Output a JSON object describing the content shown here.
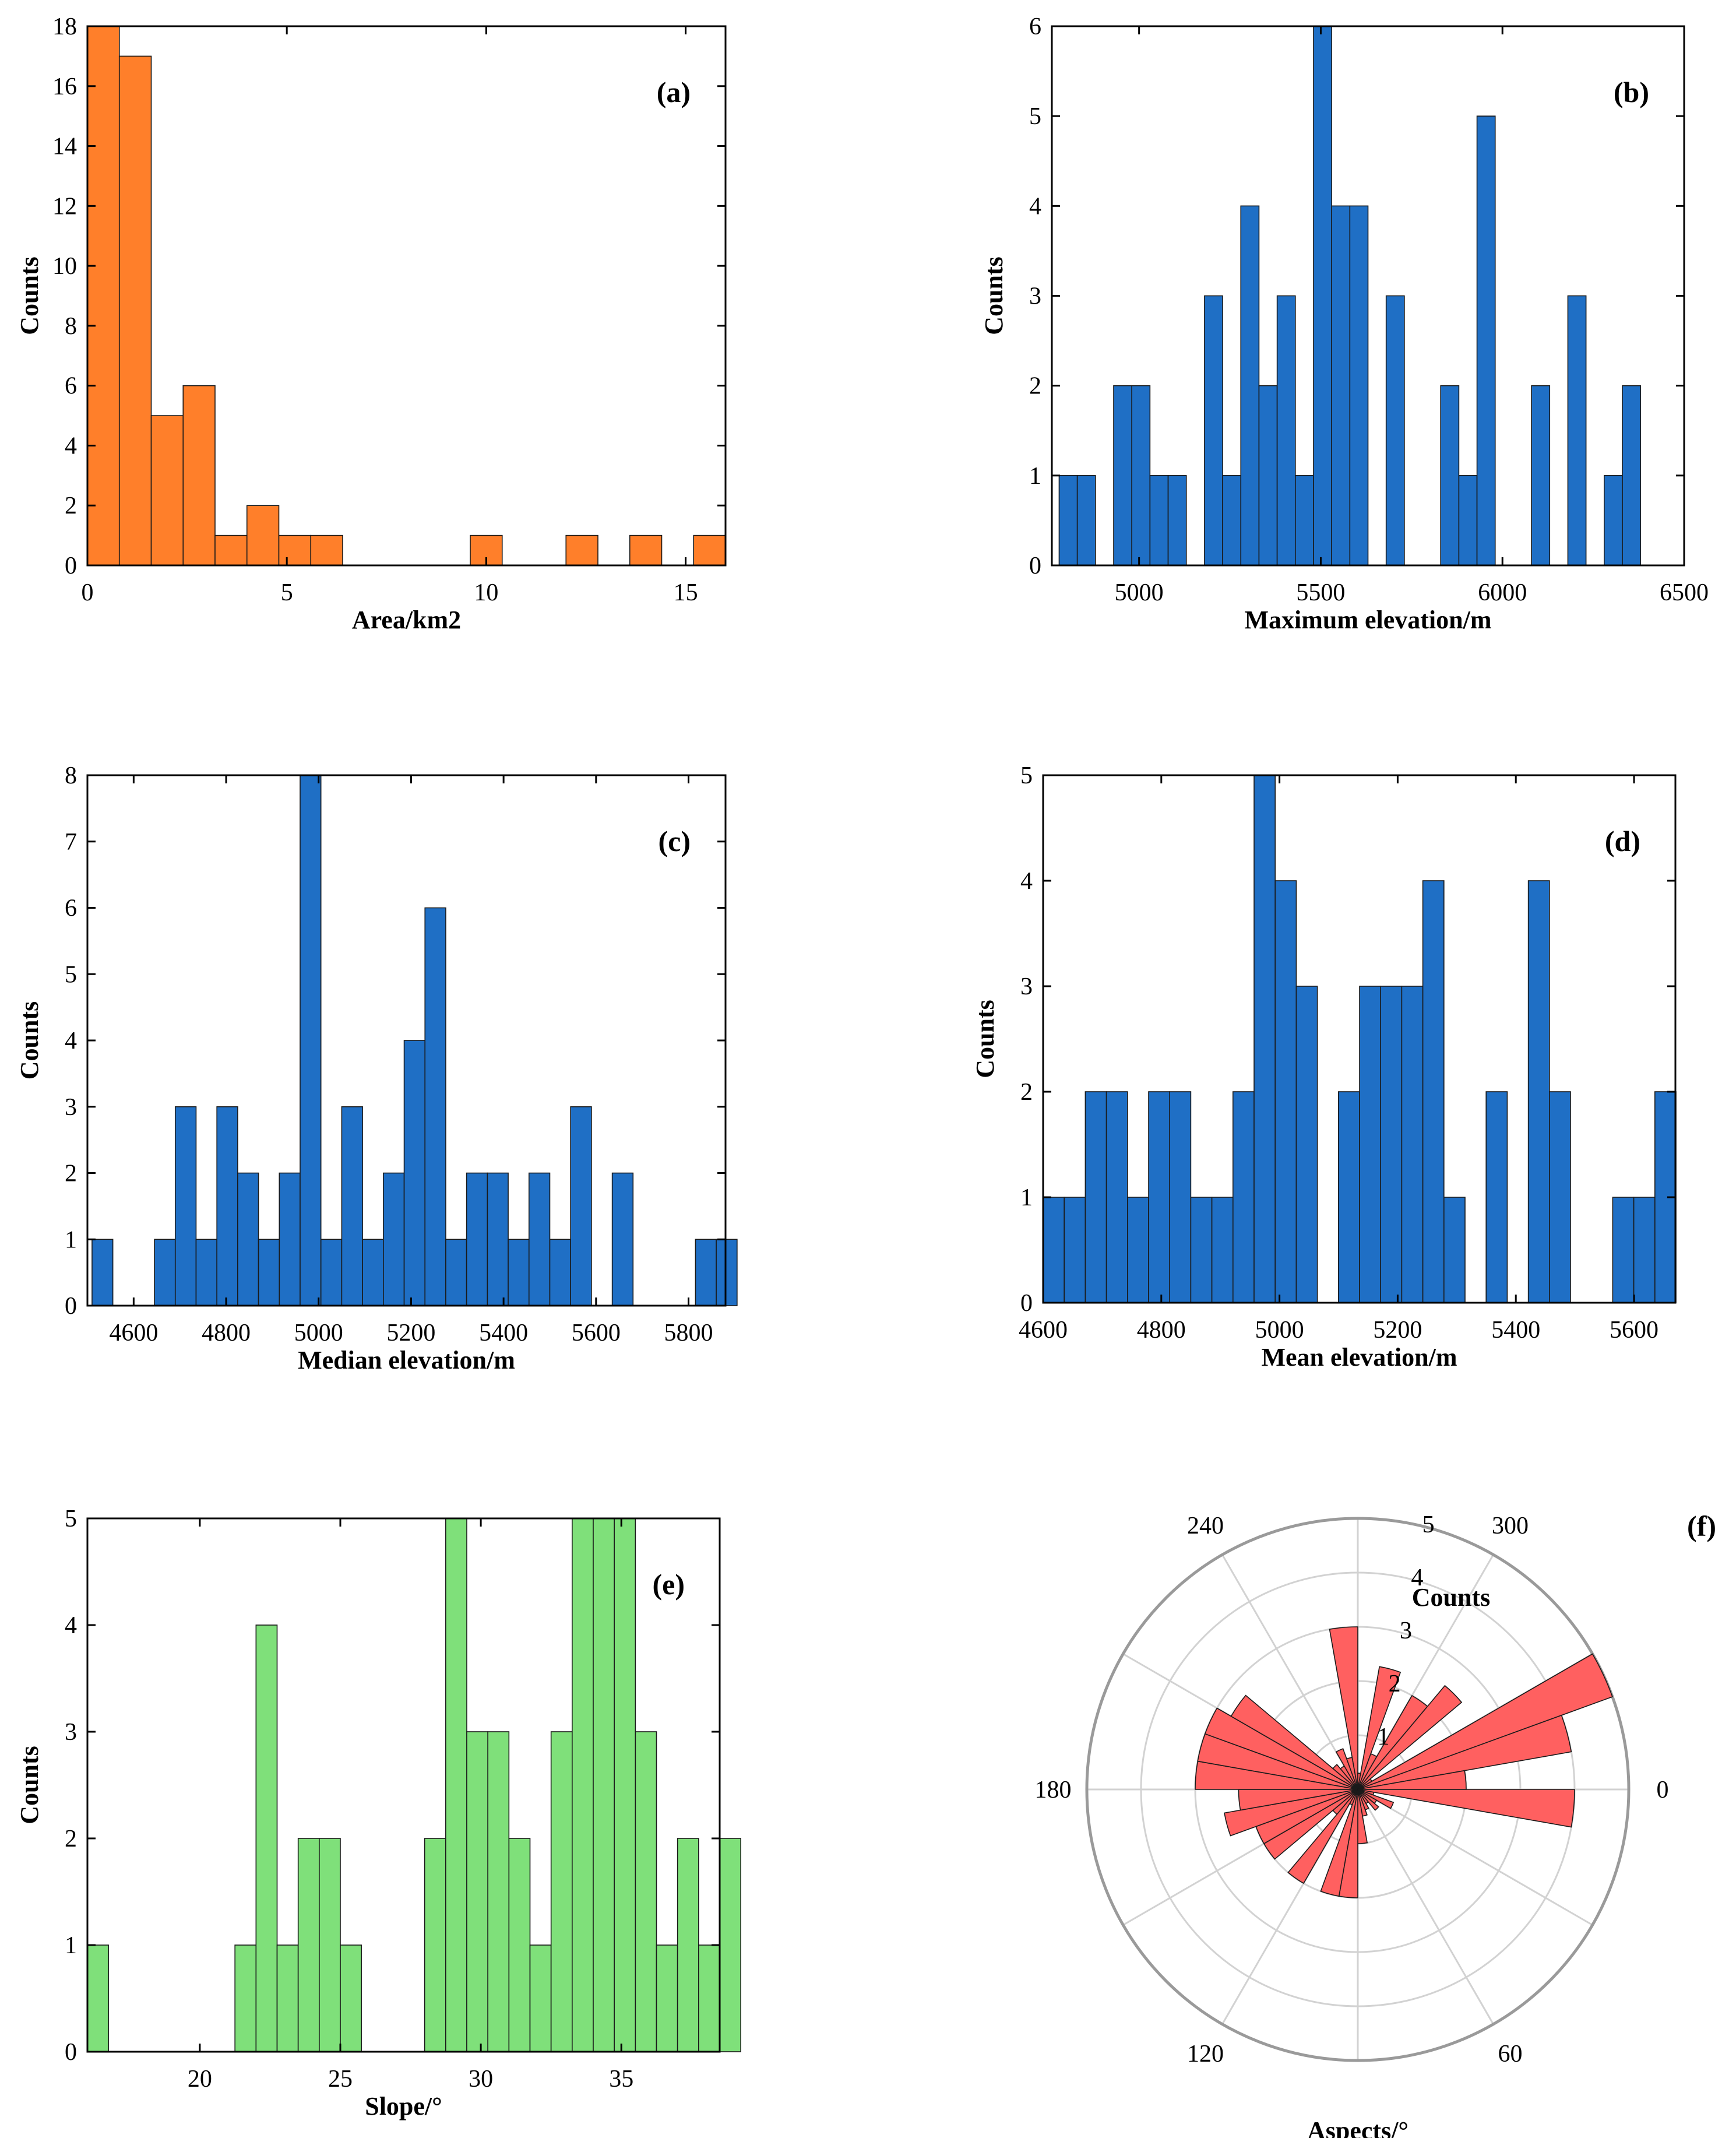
{
  "chart_data": [
    {
      "id": "a",
      "type": "bar",
      "panel_label": "(a)",
      "xlabel": "Area/km2",
      "ylabel": "Counts",
      "color": "#ff7f2a",
      "xlim": [
        0,
        16
      ],
      "ylim": [
        0,
        18
      ],
      "xticks": [
        0,
        5,
        10,
        15
      ],
      "yticks": [
        0,
        2,
        4,
        6,
        8,
        10,
        12,
        14,
        16,
        18
      ],
      "bin_start": 0,
      "bin_width": 0.8,
      "values": [
        18,
        17,
        5,
        6,
        1,
        2,
        1,
        1,
        0,
        0,
        0,
        0,
        1,
        0,
        0,
        1,
        0,
        1,
        0,
        1
      ]
    },
    {
      "id": "b",
      "type": "bar",
      "panel_label": "(b)",
      "xlabel": "Maximum elevation/m",
      "ylabel": "Counts",
      "color": "#1f6fc5",
      "xlim": [
        4760,
        6500
      ],
      "ylim": [
        0,
        6
      ],
      "xticks": [
        5000,
        5500,
        6000,
        6500
      ],
      "yticks": [
        0,
        1,
        2,
        3,
        4,
        5,
        6
      ],
      "bin_start": 4780,
      "bin_width": 50,
      "values": [
        1,
        1,
        0,
        2,
        2,
        1,
        1,
        0,
        3,
        1,
        4,
        2,
        3,
        1,
        6,
        4,
        4,
        0,
        3,
        0,
        0,
        2,
        1,
        5,
        0,
        0,
        2,
        0,
        3,
        0,
        1,
        2
      ]
    },
    {
      "id": "c",
      "type": "bar",
      "panel_label": "(c)",
      "xlabel": "Median elevation/m",
      "ylabel": "Counts",
      "color": "#1f6fc5",
      "xlim": [
        4500,
        5880
      ],
      "ylim": [
        0,
        8
      ],
      "xticks": [
        4600,
        4800,
        5000,
        5200,
        5400,
        5600,
        5800
      ],
      "yticks": [
        0,
        1,
        2,
        3,
        4,
        5,
        6,
        7,
        8
      ],
      "bin_start": 4510,
      "bin_width": 45,
      "values": [
        1,
        0,
        0,
        1,
        3,
        1,
        3,
        2,
        1,
        2,
        8,
        1,
        3,
        1,
        2,
        4,
        6,
        1,
        2,
        2,
        1,
        2,
        1,
        3,
        0,
        2,
        0,
        0,
        0,
        1,
        1
      ]
    },
    {
      "id": "d",
      "type": "bar",
      "panel_label": "(d)",
      "xlabel": "Mean elevation/m",
      "ylabel": "Counts",
      "color": "#1f6fc5",
      "xlim": [
        4600,
        5670
      ],
      "ylim": [
        0,
        5
      ],
      "xticks": [
        4600,
        4800,
        5000,
        5200,
        5400,
        5600
      ],
      "yticks": [
        0,
        1,
        2,
        3,
        4,
        5
      ],
      "bin_start": 4600,
      "bin_width": 35.7,
      "values": [
        1,
        1,
        2,
        2,
        1,
        2,
        2,
        1,
        1,
        2,
        5,
        4,
        3,
        0,
        2,
        3,
        3,
        3,
        4,
        1,
        0,
        2,
        0,
        4,
        2,
        0,
        0,
        1,
        1,
        2
      ]
    },
    {
      "id": "e",
      "type": "bar",
      "panel_label": "(e)",
      "xlabel": "Slope/°",
      "ylabel": "Counts",
      "color": "#7fe07a",
      "xlim": [
        16,
        38.5
      ],
      "ylim": [
        0,
        5
      ],
      "xticks": [
        20,
        25,
        30,
        35
      ],
      "yticks": [
        0,
        1,
        2,
        3,
        4,
        5
      ],
      "bin_start": 16,
      "bin_width": 0.75,
      "values": [
        1,
        0,
        0,
        0,
        0,
        0,
        0,
        1,
        4,
        1,
        2,
        2,
        1,
        0,
        0,
        0,
        2,
        5,
        3,
        3,
        2,
        1,
        3,
        5,
        5,
        5,
        3,
        1,
        2,
        1,
        2
      ]
    },
    {
      "id": "f",
      "type": "polar_histogram",
      "panel_label": "(f)",
      "xlabel": "Aspects/°",
      "rlabel": "Counts",
      "color": "#ff6060",
      "rlim": [
        0,
        5
      ],
      "rticks": [
        1,
        2,
        3,
        4,
        5
      ],
      "theta_ticks": [
        0,
        60,
        120,
        180,
        240,
        300
      ],
      "bin_width_deg": 10,
      "values": [
        4,
        0.3,
        0.7,
        0.4,
        0.5,
        0.3,
        0.4,
        0.5,
        1,
        2,
        2,
        0.3,
        2,
        0.6,
        2,
        2,
        2.5,
        2.2,
        3,
        3,
        3,
        2.7,
        0.6,
        0.5,
        0.8,
        0.6,
        3,
        0.3,
        2.3,
        0.7,
        2,
        2.5,
        0.3,
        5,
        4,
        2
      ]
    }
  ]
}
